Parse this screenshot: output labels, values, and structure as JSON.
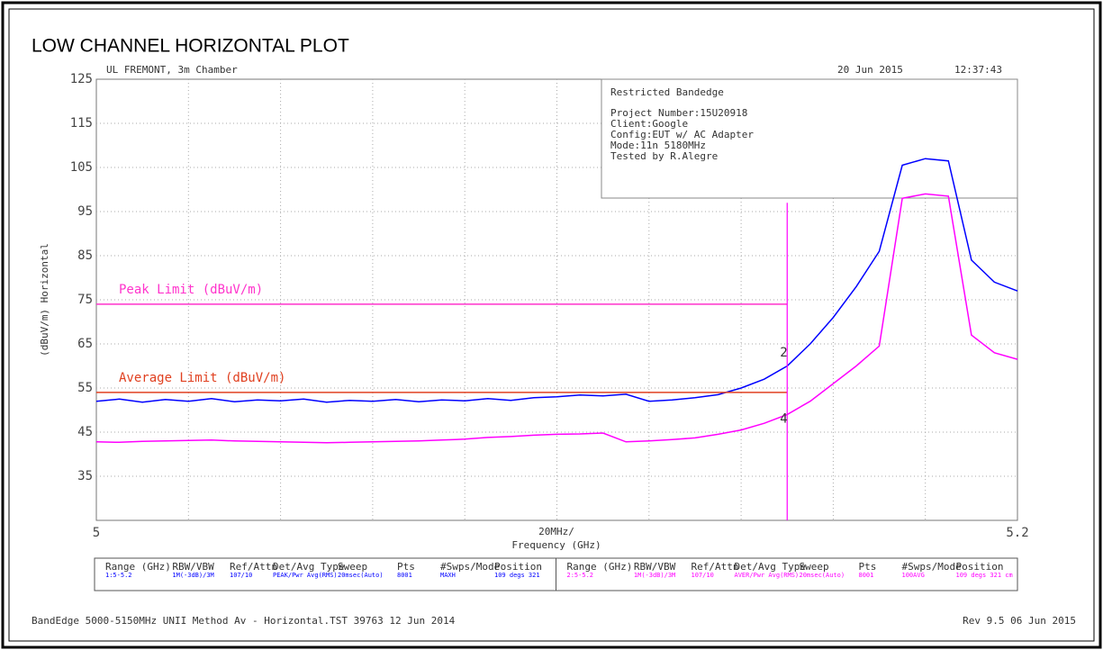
{
  "chart_data": {
    "type": "line",
    "title": "LOW CHANNEL HORIZONTAL PLOT",
    "header_left": "UL FREMONT, 3m Chamber",
    "header_date": "20 Jun 2015",
    "header_time": "12:37:43",
    "info_box": {
      "title": "Restricted Bandedge",
      "lines": [
        "Project Number:15U20918",
        "Client:Google",
        "Config:EUT w/ AC Adapter",
        "Mode:11n 5180MHz",
        "Tested by R.Alegre"
      ]
    },
    "y_label": "(dBuV/m) Horizontal",
    "x_label": "Frequency (GHz)",
    "x_span": "20MHz/",
    "xlim": [
      5,
      5.2
    ],
    "ylim": [
      25,
      125
    ],
    "xticks": [
      5,
      5.2
    ],
    "yticks": [
      35,
      45,
      55,
      65,
      75,
      85,
      95,
      105,
      115,
      125
    ],
    "xgrid": [
      5.02,
      5.04,
      5.06,
      5.08,
      5.1,
      5.12,
      5.14,
      5.16,
      5.18
    ],
    "ygrid": [
      35,
      45,
      55,
      65,
      75,
      85,
      95,
      105,
      115
    ],
    "x": [
      5,
      5.005,
      5.01,
      5.015,
      5.02,
      5.025,
      5.03,
      5.035,
      5.04,
      5.045,
      5.05,
      5.055,
      5.06,
      5.065,
      5.07,
      5.075,
      5.08,
      5.085,
      5.09,
      5.095,
      5.1,
      5.105,
      5.11,
      5.115,
      5.12,
      5.125,
      5.13,
      5.135,
      5.14,
      5.145,
      5.15,
      5.155,
      5.16,
      5.165,
      5.17,
      5.175,
      5.18,
      5.185,
      5.19,
      5.195,
      5.2
    ],
    "series": [
      {
        "color": "#0000ff",
        "values": [
          52,
          52.5,
          51.8,
          52.4,
          52,
          52.6,
          51.9,
          52.3,
          52.1,
          52.5,
          51.8,
          52.2,
          52,
          52.4,
          51.9,
          52.3,
          52.1,
          52.6,
          52.2,
          52.8,
          53,
          53.4,
          53.2,
          53.6,
          52,
          52.3,
          52.8,
          53.5,
          55,
          57,
          60,
          65,
          71,
          78,
          86,
          105.5,
          107,
          106.5,
          84,
          79,
          77
        ]
      },
      {
        "color": "#ff00ff",
        "values": [
          42.8,
          42.7,
          42.9,
          43,
          43.1,
          43.2,
          43,
          42.9,
          42.8,
          42.7,
          42.6,
          42.7,
          42.8,
          42.9,
          43,
          43.2,
          43.4,
          43.8,
          44,
          44.3,
          44.5,
          44.6,
          44.8,
          42.8,
          43,
          43.3,
          43.7,
          44.5,
          45.5,
          47,
          49,
          52,
          56,
          60,
          64.5,
          98,
          99,
          98.5,
          67,
          63,
          61.5
        ]
      }
    ],
    "limits": [
      {
        "name": "Peak Limit (dBuV/m)",
        "color": "#ff33cc",
        "value": 74,
        "x": [
          5,
          5.15
        ]
      },
      {
        "name": "Average Limit (dBuV/m)",
        "color": "#e04020",
        "value": 54,
        "x": [
          5,
          5.15
        ]
      }
    ],
    "band_edge": {
      "x": 5.15,
      "top": 97,
      "color": "#ff00ff"
    },
    "markers": [
      {
        "label": "2",
        "x": 5.15,
        "y": 63
      },
      {
        "label": "4",
        "x": 5.15,
        "y": 48
      }
    ],
    "settings": {
      "headers": [
        "Range (GHz)",
        "RBW/VBW",
        "Ref/Attn",
        "Det/Avg Type",
        "Sweep",
        "Pts",
        "#Swps/Mode",
        "Position"
      ],
      "rows": [
        [
          "1:5-5.2",
          "1M(-3dB)/3M",
          "107/10",
          "PEAK/Pwr Avg(RMS)",
          "20msec(Auto)",
          "8001",
          "MAXH",
          "109 degs 321"
        ],
        [
          "2:5-5.2",
          "1M(-3dB)/3M",
          "107/10",
          "AVER/Pwr Avg(RMS)",
          "20msec(Auto)",
          "8001",
          "100AVG",
          "109 degs 321 cm"
        ]
      ]
    },
    "footer_left": "BandEdge 5000-5150MHz UNII Method Av - Horizontal.TST 39763 12 Jun 2014",
    "footer_right": "Rev 9.5 06 Jun 2015"
  }
}
